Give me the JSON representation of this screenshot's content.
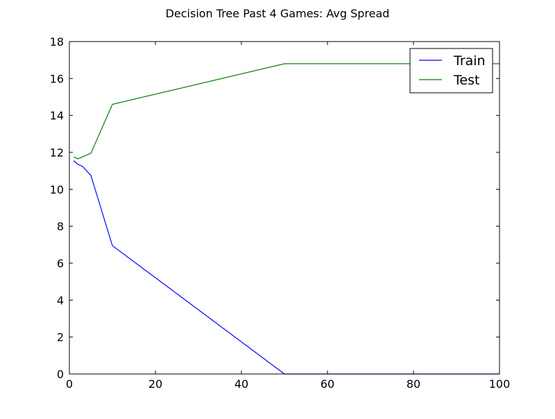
{
  "chart_data": {
    "type": "line",
    "title": "Decision Tree Past 4 Games: Avg Spread",
    "xlabel": "",
    "ylabel": "",
    "xlim": [
      0,
      100
    ],
    "ylim": [
      0,
      18
    ],
    "xticks": [
      0,
      20,
      40,
      60,
      80,
      100
    ],
    "yticks": [
      0,
      2,
      4,
      6,
      8,
      10,
      12,
      14,
      16,
      18
    ],
    "grid": false,
    "legend_position": "top-right",
    "series": [
      {
        "name": "Train",
        "color": "#0000ff",
        "x": [
          1,
          2,
          3,
          5,
          10,
          50,
          100
        ],
        "y": [
          11.55,
          11.35,
          11.25,
          10.75,
          6.95,
          0.0,
          0.0
        ]
      },
      {
        "name": "Test",
        "color": "#008000",
        "x": [
          1,
          2,
          3,
          5,
          10,
          50,
          100
        ],
        "y": [
          11.75,
          11.65,
          11.75,
          11.95,
          14.6,
          16.8,
          16.8
        ]
      }
    ]
  }
}
